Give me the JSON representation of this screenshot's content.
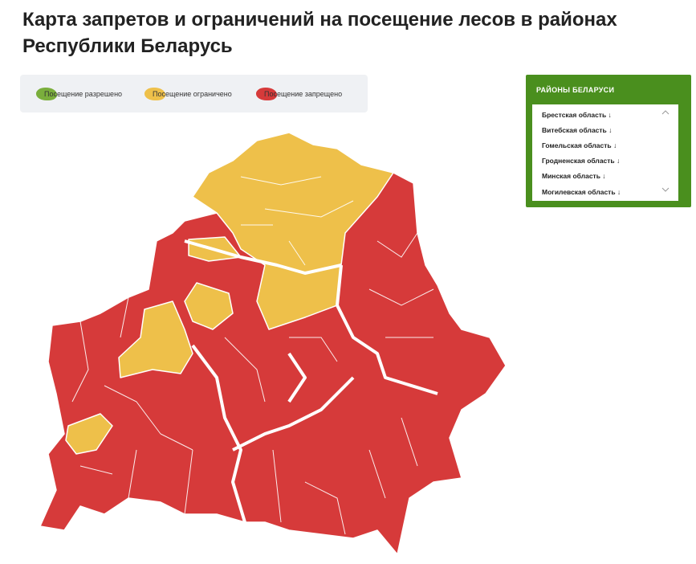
{
  "header": {
    "title": "Карта запретов и ограничений на посещение лесов в районах Республики Беларусь"
  },
  "legend": [
    "Посещение разрешено",
    "Посещение ограничено",
    "Посещение запрещено"
  ],
  "sidebar": {
    "title": "РАЙОНЫ БЕЛАРУСИ",
    "items": [
      "Брестская область ↓",
      "Витебская область ↓",
      "Гомельская область ↓",
      "Гродненская область ↓",
      "Минская область ↓",
      "Могилевская область ↓"
    ]
  }
}
